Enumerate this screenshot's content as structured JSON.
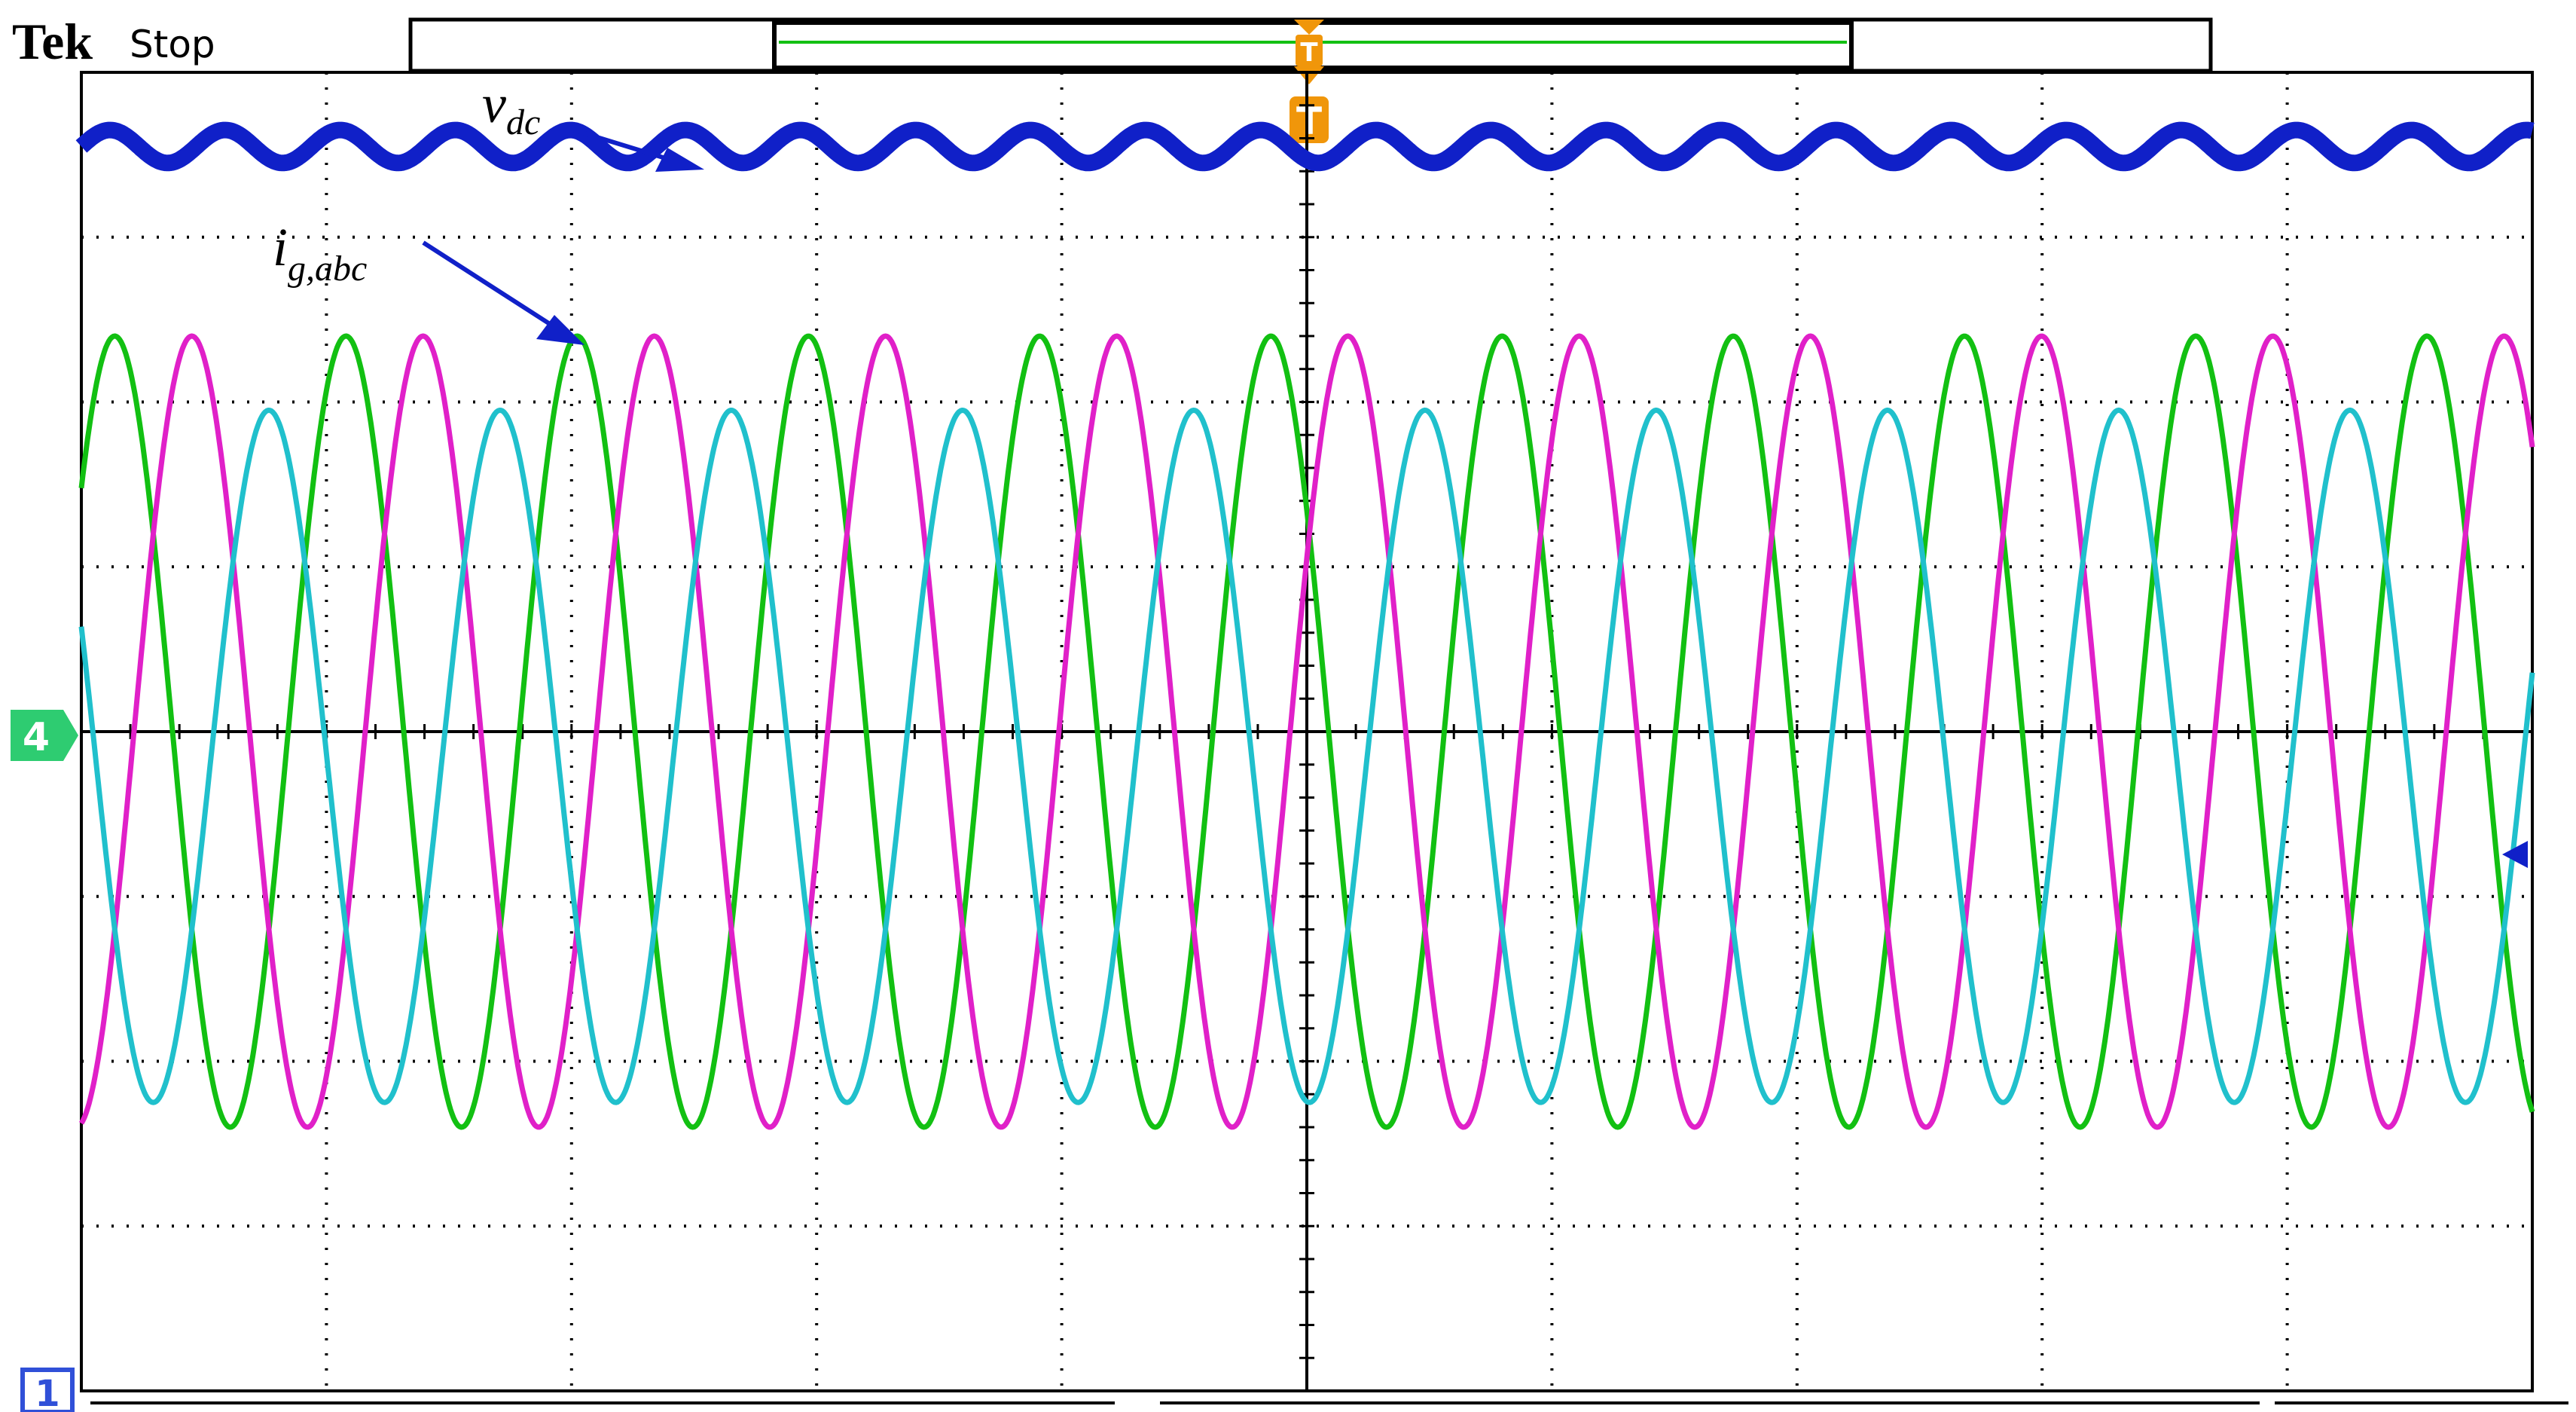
{
  "header": {
    "brand": "Tek",
    "run_state": "Stop",
    "trigger_marker": "T"
  },
  "markers": {
    "ch4_label": "4",
    "ch1_label": "1"
  },
  "colors": {
    "vdc": "#1020c8",
    "phase_a": "#12c012",
    "phase_b": "#e020c8",
    "phase_c": "#20c0cc",
    "trigger": "#f0960a",
    "ch4_marker": "#2ecc71",
    "ch1_marker": "#3050d8",
    "grid": "#000000"
  },
  "annotations": [
    {
      "id": "vdc",
      "main": "v",
      "sub": "dc"
    },
    {
      "id": "igabc",
      "main": "i",
      "sub": "g,abc"
    }
  ],
  "chart_data": {
    "type": "line",
    "xlim": [
      0,
      10
    ],
    "ylim": [
      -4,
      4
    ],
    "grid": true,
    "grid_divisions": {
      "x": 10,
      "y": 8
    },
    "series": [
      {
        "key": "vdc",
        "amplitude": 0.1,
        "offset": 3.55,
        "cycles_per_div": 2.13,
        "phase_deg": 0
      },
      {
        "key": "phase_a",
        "amplitude": 2.4,
        "offset": 0,
        "cycles_per_div": 1.06,
        "phase_deg": 38
      },
      {
        "key": "phase_b",
        "amplitude": 2.4,
        "offset": 0,
        "cycles_per_div": 1.06,
        "phase_deg": -82
      },
      {
        "key": "phase_c",
        "amplitude": 2.1,
        "offset": -0.15,
        "cycles_per_div": 1.06,
        "phase_deg": 158
      }
    ]
  }
}
